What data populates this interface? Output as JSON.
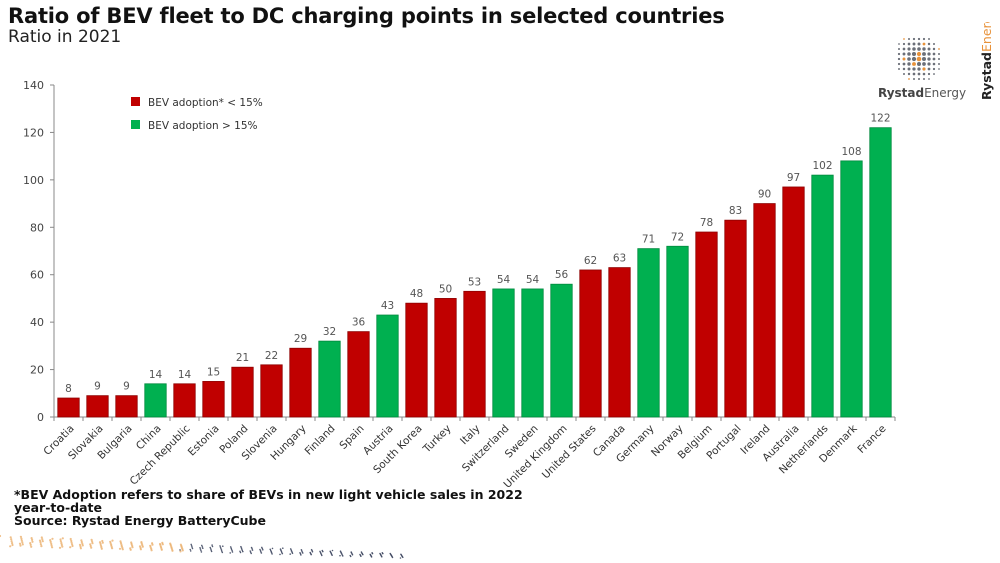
{
  "header": {
    "title": "Ratio of BEV fleet to DC charging points in selected countries",
    "subtitle": "Ratio in 2021"
  },
  "logo": {
    "brand_bold": "Rystad",
    "brand_light": "Energy",
    "icon": "globe-dots-icon"
  },
  "footnote": {
    "line1": "*BEV Adoption  refers to share of BEVs in new light  vehicle  sales in 2022",
    "line2": "year-to-date",
    "source": "Source:  Rystad  Energy  BatteryCube"
  },
  "colors": {
    "low": "#C00000",
    "high": "#00B050"
  },
  "chart_data": {
    "type": "bar",
    "title": "Ratio of BEV fleet to DC charging points in selected countries",
    "subtitle": "Ratio in 2021",
    "xlabel": "",
    "ylabel": "",
    "ylim": [
      0,
      140
    ],
    "yticks": [
      0,
      20,
      40,
      60,
      80,
      100,
      120,
      140
    ],
    "grid": false,
    "legend_position": "top-left",
    "legend": [
      {
        "key": "low",
        "label": "BEV adoption* < 15%"
      },
      {
        "key": "high",
        "label": "BEV adoption > 15%"
      }
    ],
    "categories": [
      "Croatia",
      "Slovakia",
      "Bulgaria",
      "China",
      "Czech Republic",
      "Estonia",
      "Poland",
      "Slovenia",
      "Hungary",
      "Finland",
      "Spain",
      "Austria",
      "South Korea",
      "Turkey",
      "Italy",
      "Switzerland",
      "Sweden",
      "United Kingdom",
      "United States",
      "Canada",
      "Germany",
      "Norway",
      "Belgium",
      "Portugal",
      "Ireland",
      "Australia",
      "Netherlands",
      "Denmark",
      "France"
    ],
    "values": [
      8,
      9,
      9,
      14,
      14,
      15,
      21,
      22,
      29,
      32,
      36,
      43,
      48,
      50,
      53,
      54,
      54,
      56,
      62,
      63,
      71,
      72,
      78,
      83,
      90,
      97,
      102,
      108,
      122
    ],
    "groups": [
      "low",
      "low",
      "low",
      "high",
      "low",
      "low",
      "low",
      "low",
      "low",
      "high",
      "low",
      "high",
      "low",
      "low",
      "low",
      "high",
      "high",
      "high",
      "low",
      "low",
      "high",
      "high",
      "low",
      "low",
      "low",
      "low",
      "high",
      "high",
      "high"
    ]
  }
}
